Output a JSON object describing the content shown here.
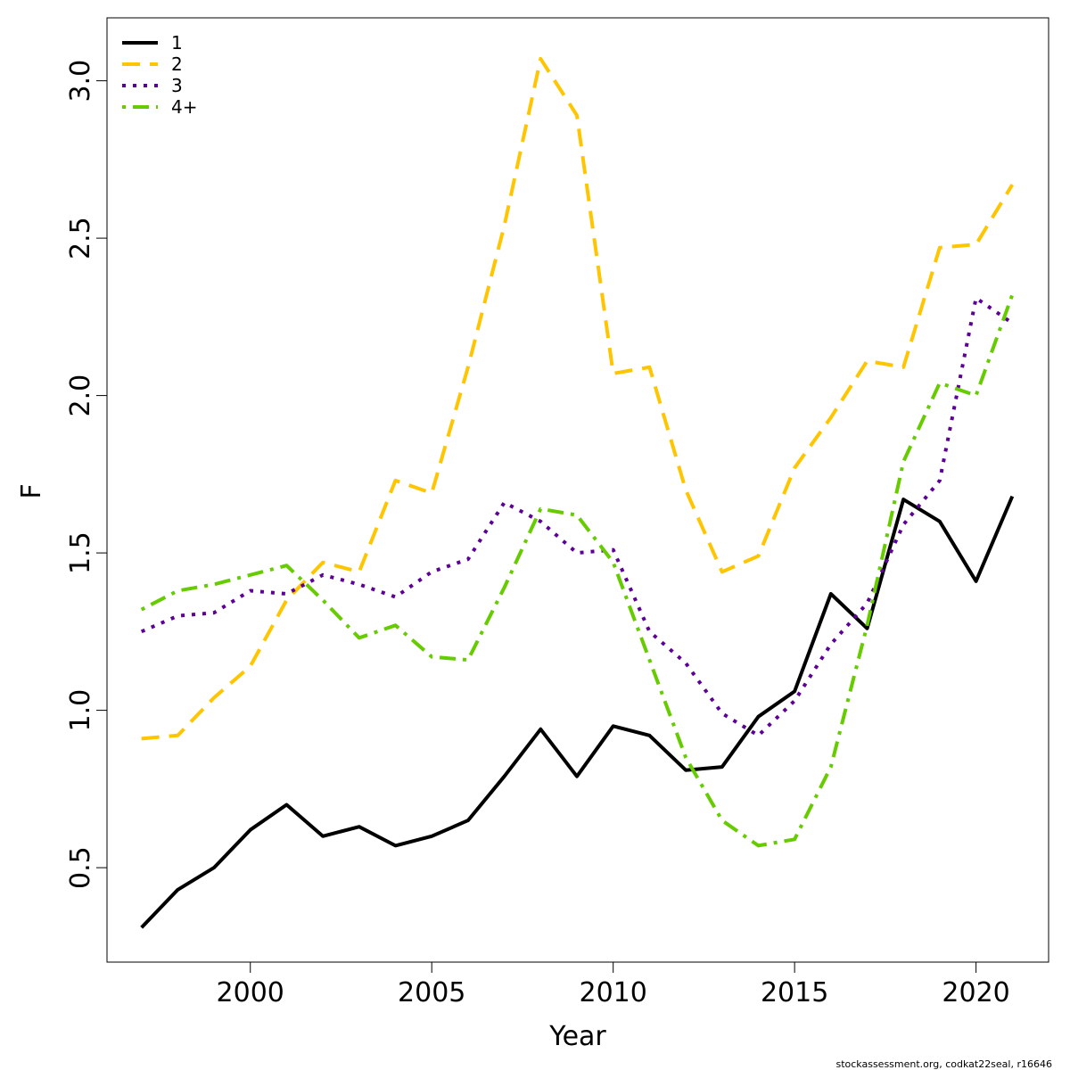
{
  "credit": "stockassessment.org, codkat22seal, r16646",
  "chart_data": {
    "type": "line",
    "xlabel": "Year",
    "ylabel": "F",
    "xlim": [
      1996.05,
      2022.0
    ],
    "ylim": [
      0.2,
      3.2
    ],
    "x_ticks": [
      2000,
      2005,
      2010,
      2015,
      2020
    ],
    "y_ticks": [
      0.5,
      1.0,
      1.5,
      2.0,
      2.5,
      3.0
    ],
    "x_tick_labels": [
      "2000",
      "2005",
      "2010",
      "2015",
      "2020"
    ],
    "y_tick_labels": [
      "0.5",
      "1.0",
      "1.5",
      "2.0",
      "2.5",
      "3.0"
    ],
    "grid": false,
    "legend_position": "top-left",
    "x": [
      1997,
      1998,
      1999,
      2000,
      2001,
      2002,
      2003,
      2004,
      2005,
      2006,
      2007,
      2008,
      2009,
      2010,
      2011,
      2012,
      2013,
      2014,
      2015,
      2016,
      2017,
      2018,
      2019,
      2020,
      2021
    ],
    "series": [
      {
        "name": "1",
        "color": "#000000",
        "dash": "solid",
        "values": [
          0.31,
          0.43,
          0.5,
          0.62,
          0.7,
          0.6,
          0.63,
          0.57,
          0.6,
          0.65,
          0.79,
          0.94,
          0.79,
          0.95,
          0.92,
          0.81,
          0.82,
          0.98,
          1.06,
          1.37,
          1.26,
          1.67,
          1.6,
          1.41,
          1.68
        ]
      },
      {
        "name": "2",
        "color": "#ffc500",
        "dash": "dashed",
        "values": [
          0.91,
          0.92,
          1.04,
          1.14,
          1.35,
          1.47,
          1.44,
          1.73,
          1.69,
          2.09,
          2.54,
          3.07,
          2.89,
          2.07,
          2.09,
          1.7,
          1.44,
          1.49,
          1.77,
          1.93,
          2.11,
          2.09,
          2.47,
          2.48,
          2.67
        ]
      },
      {
        "name": "3",
        "color": "#5c0096",
        "dash": "dotted",
        "values": [
          1.25,
          1.3,
          1.31,
          1.38,
          1.37,
          1.43,
          1.4,
          1.36,
          1.44,
          1.48,
          1.66,
          1.6,
          1.5,
          1.51,
          1.25,
          1.15,
          0.99,
          0.92,
          1.03,
          1.21,
          1.34,
          1.59,
          1.73,
          2.31,
          2.23
        ]
      },
      {
        "name": "4+",
        "color": "#66cc00",
        "dash": "dotdash",
        "values": [
          1.32,
          1.38,
          1.4,
          1.43,
          1.46,
          1.35,
          1.23,
          1.27,
          1.17,
          1.16,
          1.39,
          1.64,
          1.62,
          1.47,
          1.16,
          0.85,
          0.65,
          0.57,
          0.59,
          0.82,
          1.27,
          1.79,
          2.04,
          2.0,
          2.32
        ]
      }
    ]
  }
}
